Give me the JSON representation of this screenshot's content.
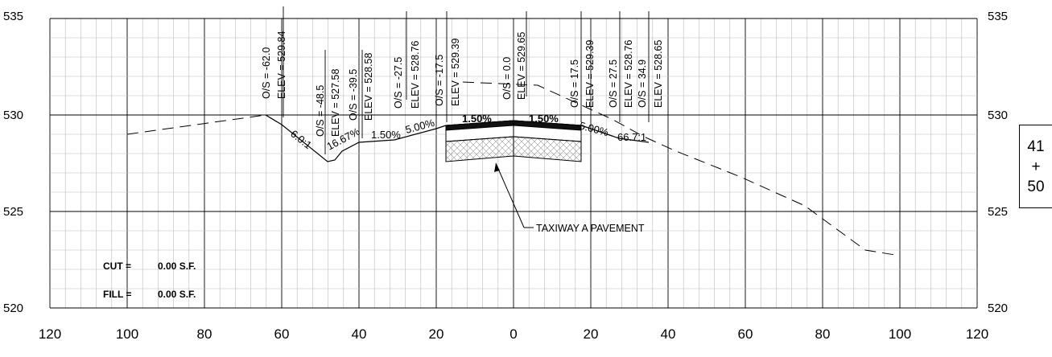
{
  "elevation_labels": [
    "535",
    "530",
    "525",
    "520"
  ],
  "offset_labels": [
    "120",
    "100",
    "80",
    "60",
    "40",
    "20",
    "0",
    "20",
    "40",
    "60",
    "80",
    "100",
    "120"
  ],
  "station": {
    "top": "41",
    "mid": "+",
    "bottom": "50"
  },
  "quantities": {
    "cut_label": "CUT =",
    "cut_value": "0.00 S.F.",
    "fill_label": "FILL =",
    "fill_value": "0.00 S.F."
  },
  "callout": "TAXIWAY A PAVEMENT",
  "point_labels": [
    {
      "os": "O/S = -62.0",
      "elev": "ELEV = 529.84"
    },
    {
      "os": "O/S = -48.5",
      "elev": "ELEV = 527.58"
    },
    {
      "os": "O/S = -39.5",
      "elev": "ELEV = 528.58"
    },
    {
      "os": "O/S = -27.5",
      "elev": "ELEV = 528.76"
    },
    {
      "os": "O/S = -17.5",
      "elev": "ELEV = 529.39"
    },
    {
      "os": "O/S = 0.0",
      "elev": "ELEV = 529.65"
    },
    {
      "os": "O/S = 17.5",
      "elev": "ELEV = 529.39"
    },
    {
      "os": "O/S = 27.5",
      "elev": "ELEV = 528.76"
    },
    {
      "os": "O/S = 34.9",
      "elev": "ELEV = 528.65"
    }
  ],
  "slope_labels": [
    "6.0:1",
    "16.67%",
    "1.50%",
    "5.00%",
    "1.50%",
    "1.50%",
    "5.00%",
    "66.7:1"
  ]
}
